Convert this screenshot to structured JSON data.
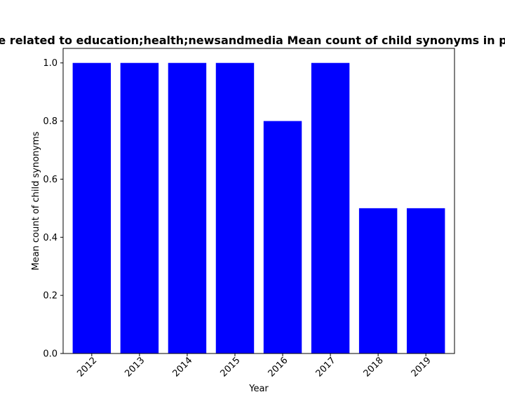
{
  "chart_data": {
    "type": "bar",
    "title": "e related to education;health;newsandmedia Mean count of child synonyms in p",
    "xlabel": "Year",
    "ylabel": "Mean count of child synonyms",
    "categories": [
      "2012",
      "2013",
      "2014",
      "2015",
      "2016",
      "2017",
      "2018",
      "2019"
    ],
    "values": [
      1.0,
      1.0,
      1.0,
      1.0,
      0.8,
      1.0,
      0.5,
      0.5
    ],
    "ylim": [
      0,
      1.05
    ],
    "yticks": [
      "0.0",
      "0.2",
      "0.4",
      "0.6",
      "0.8",
      "1.0"
    ],
    "bar_color": "#0000ff",
    "grid": false
  }
}
